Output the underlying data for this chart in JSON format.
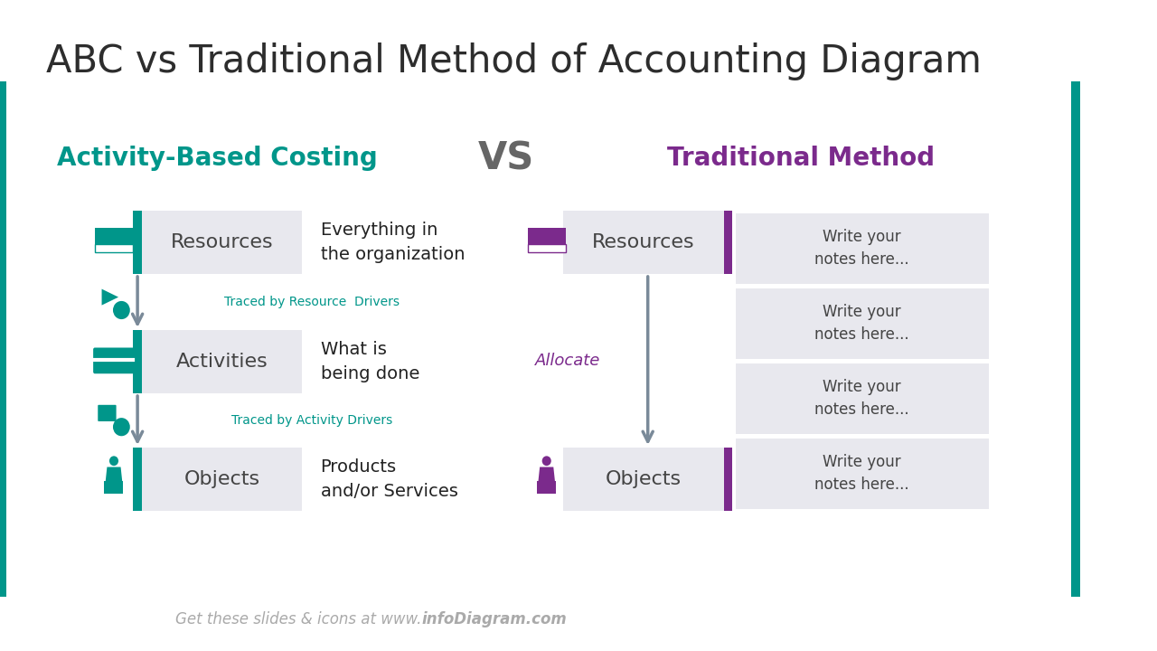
{
  "title": "ABC vs Traditional Method of Accounting Diagram",
  "title_fontsize": 30,
  "title_color": "#2d2d2d",
  "bg_color": "#ffffff",
  "teal": "#00968A",
  "purple": "#7B2A8C",
  "cyan_text": "#00968A",
  "box_fill": "#E8E8EE",
  "gray_text": "#444444",
  "dark_text": "#222222",
  "vs_color": "#666666",
  "footer_color": "#AAAAAA",
  "abc_title": "Activity-Based Costing",
  "abc_title_color": "#00968A",
  "trad_title": "Traditional Method",
  "trad_title_color": "#7B2A8C",
  "vs_text": "VS",
  "abc_boxes": [
    "Resources",
    "Activities",
    "Objects"
  ],
  "abc_descriptions": [
    "Everything in\nthe organization",
    "What is\nbeing done",
    "Products\nand/or Services"
  ],
  "abc_arrow_labels": [
    "Traced by Resource  Drivers",
    "Traced by Activity Drivers"
  ],
  "trad_boxes": [
    "Resources",
    "Objects"
  ],
  "trad_arrow_label": "Allocate",
  "trad_notes": [
    "Write your\nnotes here...",
    "Write your\nnotes here...",
    "Write your\nnotes here...",
    "Write your\nnotes here..."
  ],
  "footer": "Get these slides & icons at www.",
  "footer_bold": "infoDiagram.com",
  "left_bar_color": "#00968A",
  "right_bar_color": "#00968A",
  "arrow_color": "#7A8A99",
  "note_bg": "#E8E8EE"
}
